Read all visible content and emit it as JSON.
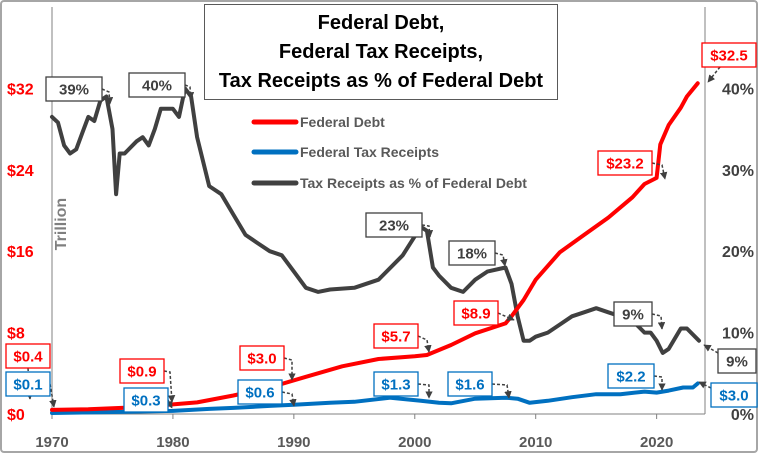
{
  "chart_data": {
    "type": "line",
    "title_lines": [
      {
        "text": "Federal Debt",
        "suffix": ",",
        "color": "#ff0000"
      },
      {
        "text": "Federal Tax Receipts",
        "suffix": ",",
        "color": "#0070c0"
      },
      {
        "text": "Tax Receipts as % of Federal Debt",
        "suffix": "",
        "color": "#000000"
      }
    ],
    "ylabel_left": "Trillion",
    "xlim": [
      1970,
      2024
    ],
    "ylim_left": [
      0,
      40
    ],
    "ylim_right": [
      0,
      50
    ],
    "x_ticks": [
      {
        "v": 1970,
        "label": "1970"
      },
      {
        "v": 1980,
        "label": "1980"
      },
      {
        "v": 1990,
        "label": "1990"
      },
      {
        "v": 2000,
        "label": "2000"
      },
      {
        "v": 2010,
        "label": "2010"
      },
      {
        "v": 2020,
        "label": "2020"
      }
    ],
    "y_ticks_left": [
      {
        "v": 0,
        "label": "$0"
      },
      {
        "v": 8,
        "label": "$8"
      },
      {
        "v": 16,
        "label": "$16"
      },
      {
        "v": 24,
        "label": "$24"
      },
      {
        "v": 32,
        "label": "$32"
      }
    ],
    "y_ticks_right": [
      {
        "v": 0,
        "label": "0%"
      },
      {
        "v": 10,
        "label": "10%"
      },
      {
        "v": 20,
        "label": "20%"
      },
      {
        "v": 30,
        "label": "30%"
      },
      {
        "v": 40,
        "label": "40%"
      }
    ],
    "grid": false,
    "legend_placement": "top-center",
    "series": [
      {
        "name": "Federal Debt",
        "axis": "left",
        "color": "#ff0000",
        "width": 4,
        "x": [
          1970,
          1973,
          1976,
          1979,
          1982,
          1985,
          1988,
          1991,
          1994,
          1997,
          2000,
          2001,
          2003,
          2005,
          2007.5,
          2008,
          2009,
          2010,
          2012,
          2014,
          2016,
          2018,
          2019,
          2020,
          2020.3,
          2021,
          2022,
          2022.5,
          2023.4
        ],
        "values": [
          0.4,
          0.46,
          0.62,
          0.85,
          1.14,
          1.82,
          2.6,
          3.66,
          4.69,
          5.41,
          5.67,
          5.8,
          6.78,
          7.93,
          8.9,
          9.6,
          11.2,
          13.2,
          15.9,
          17.6,
          19.3,
          21.3,
          22.6,
          23.2,
          26.5,
          28.4,
          30.1,
          31.2,
          32.5
        ]
      },
      {
        "name": "Federal Tax Receipts",
        "axis": "left",
        "color": "#0070c0",
        "width": 4,
        "x": [
          1970,
          1975,
          1980,
          1983,
          1985,
          1988,
          1990,
          1993,
          1995,
          1998,
          2000.5,
          2002,
          2003,
          2005,
          2007.5,
          2008.5,
          2009.5,
          2011,
          2013,
          2015,
          2017,
          2019,
          2020,
          2021,
          2022.2,
          2023,
          2023.4
        ],
        "values": [
          0.1,
          0.2,
          0.3,
          0.5,
          0.6,
          0.8,
          0.9,
          1.1,
          1.2,
          1.6,
          1.3,
          1.1,
          1.05,
          1.5,
          1.6,
          1.5,
          1.1,
          1.3,
          1.65,
          1.95,
          1.95,
          2.2,
          2.1,
          2.3,
          2.6,
          2.6,
          3.0
        ]
      },
      {
        "name": "Tax Receipts as % of Federal Debt",
        "axis": "right",
        "color": "#404040",
        "width": 4,
        "x": [
          1970,
          1970.5,
          1971,
          1971.5,
          1972,
          1972.5,
          1973,
          1973.5,
          1974,
          1974.5,
          1975,
          1975.3,
          1975.6,
          1976,
          1977,
          1977.5,
          1978,
          1978.5,
          1979,
          1980,
          1980.5,
          1981,
          1981.5,
          1982,
          1983,
          1984,
          1985,
          1986,
          1987,
          1988,
          1989,
          1990,
          1991,
          1992,
          1993,
          1995,
          1997,
          1999,
          2000.5,
          2001,
          2001.5,
          2002,
          2003,
          2004,
          2005,
          2006,
          2007.5,
          2008,
          2008.5,
          2009,
          2009.5,
          2010,
          2011,
          2012,
          2013,
          2014,
          2015,
          2016,
          2017,
          2018,
          2019,
          2019.5,
          2020,
          2020.5,
          2021,
          2022,
          2022.5,
          2023.5
        ],
        "values": [
          36.5,
          35.8,
          33,
          32,
          32.5,
          34.5,
          36.5,
          36,
          38.5,
          39,
          35,
          27,
          32,
          32,
          33.5,
          34,
          33,
          35,
          37.5,
          37.5,
          36.5,
          40,
          39,
          34,
          28,
          27,
          24.5,
          22,
          21,
          20,
          19.5,
          17.5,
          15.5,
          15,
          15.3,
          15.5,
          16.5,
          19.5,
          23,
          22.5,
          18,
          17,
          15.5,
          15,
          16.5,
          17.5,
          18,
          16,
          12,
          9,
          9,
          9.5,
          10,
          11,
          12,
          12.5,
          13,
          12.5,
          12,
          11.5,
          10,
          10,
          9,
          7.5,
          8,
          10.5,
          10.5,
          9
        ]
      }
    ],
    "annotations": [
      {
        "text": "$0.4",
        "color": "#ff0000"
      },
      {
        "text": "$0.1",
        "color": "#0070c0"
      },
      {
        "text": "$0.9",
        "color": "#ff0000"
      },
      {
        "text": "$0.3",
        "color": "#0070c0"
      },
      {
        "text": "$3.0",
        "color": "#ff0000"
      },
      {
        "text": "$0.6",
        "color": "#0070c0"
      },
      {
        "text": "$5.7",
        "color": "#ff0000"
      },
      {
        "text": "$1.3",
        "color": "#0070c0"
      },
      {
        "text": "$8.9",
        "color": "#ff0000"
      },
      {
        "text": "$1.6",
        "color": "#0070c0"
      },
      {
        "text": "$23.2",
        "color": "#ff0000"
      },
      {
        "text": "$2.2",
        "color": "#0070c0"
      },
      {
        "text": "$32.5",
        "color": "#ff0000"
      },
      {
        "text": "$3.0",
        "color": "#0070c0"
      },
      {
        "text": "39%",
        "color": "#404040"
      },
      {
        "text": "40%",
        "color": "#404040"
      },
      {
        "text": "23%",
        "color": "#404040"
      },
      {
        "text": "18%",
        "color": "#404040"
      },
      {
        "text": "9%",
        "color": "#404040"
      },
      {
        "text": "9%",
        "color": "#404040"
      }
    ]
  }
}
